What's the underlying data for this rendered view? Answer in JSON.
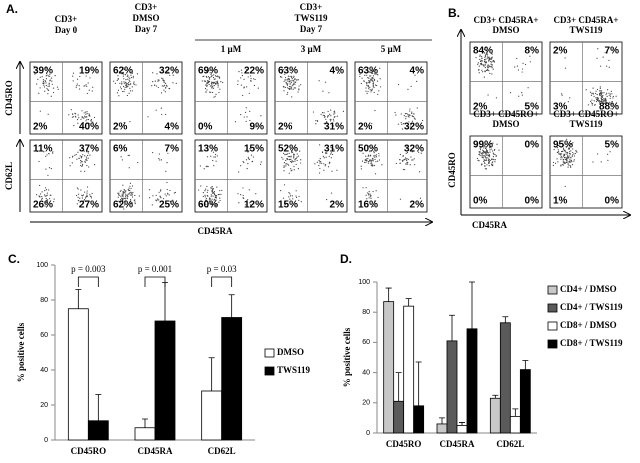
{
  "panel_a": {
    "label": "A.",
    "headers": [
      [
        "CD3+",
        "Day 0"
      ],
      [
        "CD3+",
        "DMSO",
        "Day 7"
      ],
      [
        "CD3+",
        "TWS119",
        "Day 7"
      ]
    ],
    "doses": [
      "1 µM",
      "3 µM",
      "5 µM"
    ],
    "row_labels": [
      "CD45RO",
      "CD62L"
    ],
    "x_label": "CD45RA",
    "plots": [
      [
        [
          "39%",
          "19%",
          "2%",
          "40%"
        ],
        [
          "62%",
          "32%",
          "2%",
          "4%"
        ],
        [
          "69%",
          "22%",
          "0%",
          "9%"
        ],
        [
          "63%",
          "4%",
          "2%",
          "31%"
        ],
        [
          "63%",
          "4%",
          "2%",
          "32%"
        ]
      ],
      [
        [
          "11%",
          "37%",
          "26%",
          "27%"
        ],
        [
          "6%",
          "7%",
          "62%",
          "25%"
        ],
        [
          "13%",
          "15%",
          "60%",
          "12%"
        ],
        [
          "52%",
          "31%",
          "15%",
          "2%"
        ],
        [
          "50%",
          "32%",
          "16%",
          "2%"
        ]
      ]
    ]
  },
  "panel_b": {
    "label": "B.",
    "headers": [
      [
        "CD3+ CD45RA+",
        "DMSO"
      ],
      [
        "CD3+ CD45RA+",
        "TWS119"
      ],
      [
        "CD3+ CD45RO+",
        "DMSO"
      ],
      [
        "CD3+ CD45RO+",
        "TWS119"
      ]
    ],
    "y_label": "CD45RO",
    "x_label": "CD45RA",
    "plots": [
      [
        "84%",
        "8%",
        "2%",
        "5%"
      ],
      [
        "2%",
        "7%",
        "3%",
        "88%"
      ],
      [
        "99%",
        "0%",
        "0%",
        "0%"
      ],
      [
        "95%",
        "5%",
        "1%",
        "0%"
      ]
    ]
  },
  "chart_data": [
    {
      "type": "bar",
      "label": "C.",
      "y_label": "% positive cells",
      "categories": [
        "CD45RO",
        "CD45RA",
        "CD62L"
      ],
      "annotations": [
        "p = 0.003",
        "p = 0.001",
        "p = 0.03"
      ],
      "series": [
        {
          "name": "DMSO",
          "color": "#ffffff",
          "values": [
            75,
            7,
            28
          ],
          "errors": [
            11,
            5,
            19
          ]
        },
        {
          "name": "TWS119",
          "color": "#000000",
          "values": [
            11,
            68,
            70
          ],
          "errors": [
            15,
            22,
            13
          ]
        }
      ],
      "ylim": [
        0,
        100
      ],
      "yticks": [
        0,
        20,
        40,
        60,
        80,
        100
      ]
    },
    {
      "type": "bar",
      "label": "D.",
      "y_label": "% positive cells",
      "categories": [
        "CD45RO",
        "CD45RA",
        "CD62L"
      ],
      "series": [
        {
          "name": "CD4+ / DMSO",
          "color": "#c8c8c8",
          "values": [
            87,
            6,
            23
          ],
          "errors": [
            9,
            4,
            2
          ]
        },
        {
          "name": "CD4+ / TWS119",
          "color": "#5a5a5a",
          "values": [
            21,
            61,
            73
          ],
          "errors": [
            19,
            17,
            4
          ]
        },
        {
          "name": "CD8+ / DMSO",
          "color": "#ffffff",
          "values": [
            84,
            5,
            11
          ],
          "errors": [
            5,
            2,
            5
          ]
        },
        {
          "name": "CD8+ / TWS119",
          "color": "#000000",
          "values": [
            18,
            69,
            42
          ],
          "errors": [
            29,
            31,
            6
          ]
        }
      ],
      "ylim": [
        0,
        100
      ],
      "yticks": [
        0,
        20,
        40,
        60,
        80,
        100
      ]
    }
  ]
}
